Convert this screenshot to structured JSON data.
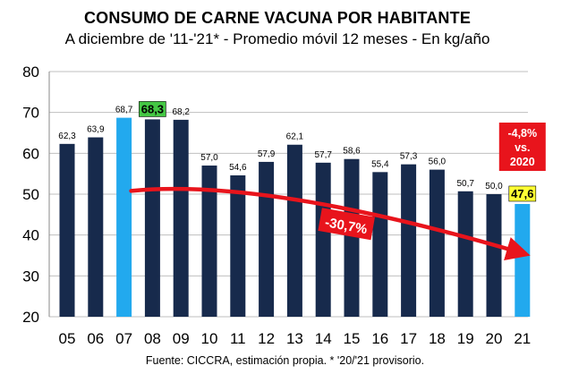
{
  "chart_data": {
    "type": "bar",
    "title": "CONSUMO DE CARNE VACUNA POR HABITANTE",
    "subtitle": "A diciembre de '11-'21* - Promedio móvil 12 meses -  En kg/año",
    "source": "Fuente: CICCRA, estimación propia. * '20/'21 provisorio.",
    "categories": [
      "05",
      "06",
      "07",
      "08",
      "09",
      "10",
      "11",
      "12",
      "13",
      "14",
      "15",
      "16",
      "17",
      "18",
      "19",
      "20",
      "21"
    ],
    "values": [
      62.3,
      63.9,
      68.7,
      68.3,
      68.2,
      57.0,
      54.6,
      57.9,
      62.1,
      57.7,
      58.6,
      55.4,
      57.3,
      56.0,
      50.7,
      50.0,
      47.6
    ],
    "value_labels": [
      "62,3",
      "63,9",
      "68,7",
      "68,3",
      "68,2",
      "57,0",
      "54,6",
      "57,9",
      "62,1",
      "57,7",
      "58,6",
      "55,4",
      "57,3",
      "56,0",
      "50,7",
      "50,0",
      "47,6"
    ],
    "ylim": [
      20,
      80
    ],
    "yticks": [
      "20",
      "30",
      "40",
      "50",
      "60",
      "70",
      "80"
    ],
    "highlighted_categories": [
      "07",
      "21"
    ],
    "highlighted_labels": [
      {
        "category": "08",
        "background": "#44c744"
      },
      {
        "category": "21",
        "background": "#ffff33"
      }
    ],
    "trend_annotation": "-30,7%",
    "callout": {
      "lines": [
        "-4,8%",
        "vs.",
        "2020"
      ]
    },
    "colors": {
      "bar": "#172a4c",
      "highlight_bar": "#22a9ee",
      "arrow": "#e8141c",
      "callout_bg": "#e8141c",
      "grid": "#bfbfbf"
    }
  }
}
